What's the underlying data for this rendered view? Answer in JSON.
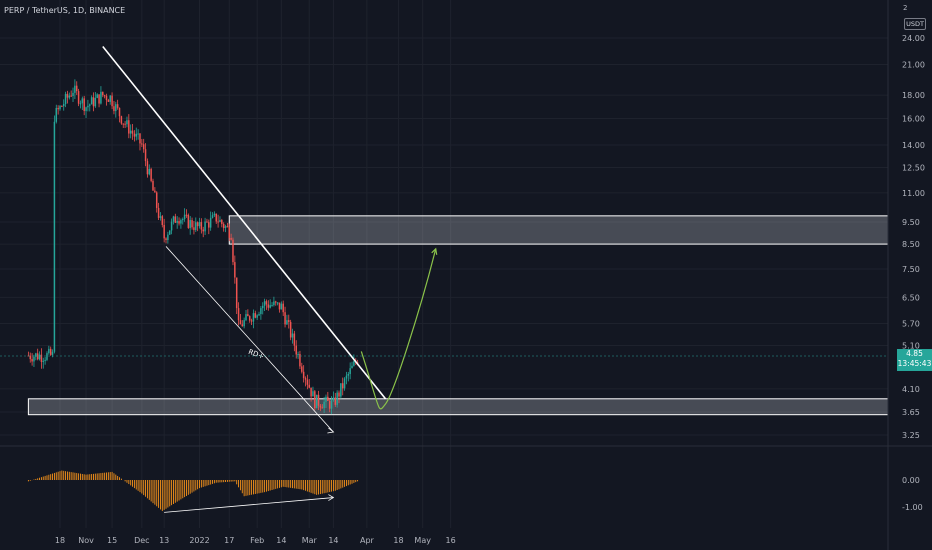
{
  "header": {
    "symbol": "PERP / TetherUS, 1D, BINANCE"
  },
  "currency_unit": "USDT",
  "unit_index": "2",
  "last_price": {
    "price": "4.85",
    "countdown": "13:45:43"
  },
  "colors": {
    "background": "#131722",
    "up": "#26a69a",
    "down": "#ef5350",
    "oscillator": "#f7931a",
    "zone_fill": "#d1d4dc",
    "projection": "#8bc34a",
    "lines": "#ffffff"
  },
  "chart_data": [
    {
      "type": "candlestick",
      "title": "PERP / TetherUS, 1D, BINANCE",
      "yscale": "log",
      "ylim": [
        2.9,
        27
      ],
      "y_ticks": [
        "24.00",
        "21.00",
        "18.00",
        "16.00",
        "14.00",
        "12.50",
        "11.00",
        "9.50",
        "8.50",
        "7.50",
        "6.50",
        "5.70",
        "5.10",
        "4.10",
        "3.65",
        "3.25"
      ],
      "x_ticks": [
        "18",
        "Nov",
        "15",
        "Dec",
        "13",
        "2022",
        "17",
        "Feb",
        "14",
        "Mar",
        "14",
        "Apr",
        "18",
        "May",
        "16"
      ],
      "close_series": [
        {
          "date": "2021-10-14",
          "close": 16.0
        },
        {
          "date": "2021-10-25",
          "close": 18.5
        },
        {
          "date": "2021-11-01",
          "close": 17.0
        },
        {
          "date": "2021-11-10",
          "close": 18.0
        },
        {
          "date": "2021-11-14",
          "close": 17.8
        },
        {
          "date": "2021-11-21",
          "close": 15.8
        },
        {
          "date": "2021-12-01",
          "close": 14.0
        },
        {
          "date": "2021-12-05",
          "close": 12.0
        },
        {
          "date": "2021-12-13",
          "close": 8.8
        },
        {
          "date": "2021-12-20",
          "close": 9.8
        },
        {
          "date": "2022-01-01",
          "close": 9.2
        },
        {
          "date": "2022-01-10",
          "close": 9.7
        },
        {
          "date": "2022-01-18",
          "close": 9.0
        },
        {
          "date": "2022-01-22",
          "close": 5.6
        },
        {
          "date": "2022-02-05",
          "close": 6.3
        },
        {
          "date": "2022-02-14",
          "close": 6.2
        },
        {
          "date": "2022-02-25",
          "close": 4.6
        },
        {
          "date": "2022-03-04",
          "close": 3.85
        },
        {
          "date": "2022-03-14",
          "close": 3.8
        },
        {
          "date": "2022-03-22",
          "close": 4.4
        },
        {
          "date": "2022-03-28",
          "close": 4.85
        }
      ],
      "zones": [
        {
          "from": 8.5,
          "to": 9.8,
          "start_date": "2022-01-17"
        },
        {
          "from": 3.6,
          "to": 3.9,
          "start_date": "2021-10-01"
        }
      ],
      "trendlines": [
        {
          "from": {
            "date": "2021-11-10",
            "price": 23.0
          },
          "to": {
            "date": "2022-04-11",
            "price": 3.9
          }
        },
        {
          "from": {
            "date": "2021-12-14",
            "price": 8.4
          },
          "to": {
            "date": "2022-03-14",
            "price": 3.3
          }
        }
      ],
      "projection": [
        {
          "date": "2022-03-29",
          "price": 4.95
        },
        {
          "date": "2022-04-11",
          "price": 3.8
        },
        {
          "date": "2022-04-26",
          "price": 4.6
        },
        {
          "date": "2022-05-08",
          "price": 8.3
        }
      ],
      "annotations": [
        {
          "text": "RD+",
          "date": "2022-01-27",
          "price": 4.9
        }
      ]
    },
    {
      "type": "histogram",
      "name": "oscillator",
      "y_ticks": [
        "0.00",
        "-1.00"
      ],
      "ylim": [
        -1.35,
        0.55
      ],
      "values": [
        {
          "date": "2021-10-01",
          "value": -0.05
        },
        {
          "date": "2021-10-19",
          "value": 0.35
        },
        {
          "date": "2021-11-01",
          "value": 0.2
        },
        {
          "date": "2021-11-15",
          "value": 0.3
        },
        {
          "date": "2021-11-20",
          "value": 0.05
        },
        {
          "date": "2021-12-01",
          "value": -0.5
        },
        {
          "date": "2021-12-12",
          "value": -1.15
        },
        {
          "date": "2021-12-20",
          "value": -0.8
        },
        {
          "date": "2022-01-01",
          "value": -0.3
        },
        {
          "date": "2022-01-10",
          "value": -0.1
        },
        {
          "date": "2022-01-20",
          "value": -0.05
        },
        {
          "date": "2022-01-25",
          "value": -0.6
        },
        {
          "date": "2022-02-05",
          "value": -0.45
        },
        {
          "date": "2022-02-15",
          "value": -0.25
        },
        {
          "date": "2022-02-25",
          "value": -0.35
        },
        {
          "date": "2022-03-05",
          "value": -0.55
        },
        {
          "date": "2022-03-15",
          "value": -0.4
        },
        {
          "date": "2022-03-28",
          "value": -0.02
        }
      ],
      "divergence_line": {
        "from": {
          "date": "2021-12-13",
          "value": -1.2
        },
        "to": {
          "date": "2022-03-14",
          "value": -0.65
        }
      }
    }
  ]
}
